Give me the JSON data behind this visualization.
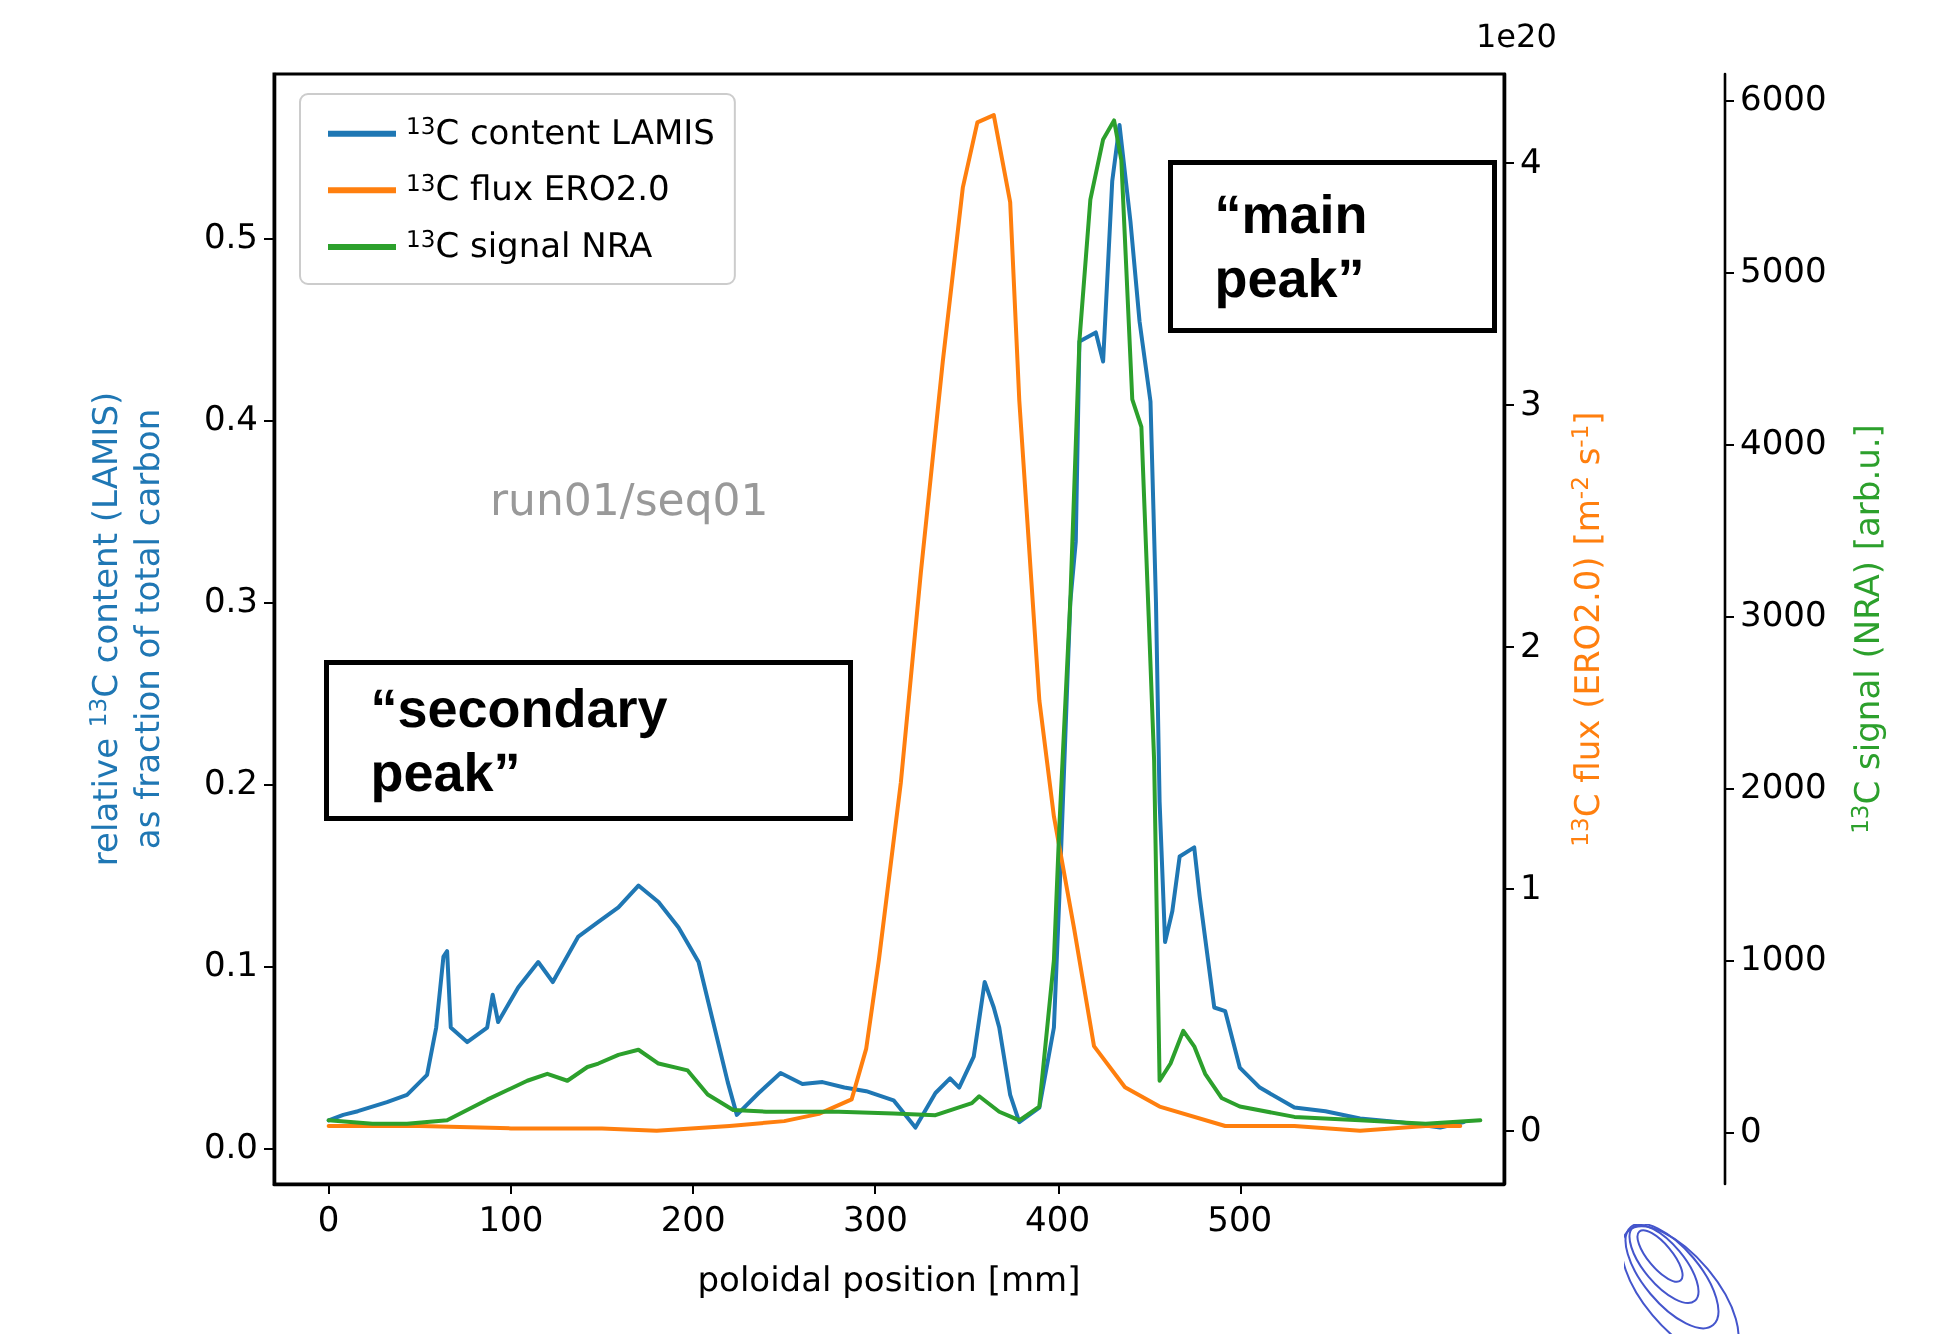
{
  "chart_data": {
    "type": "line",
    "xlabel": "poloidal position [mm]",
    "ylabel": "relative $^{13}$C content (LAMIS)\nas fraction of total carbon",
    "y2label": "$^{13}$C flux (ERO2.0) [m$^{-2}$ s$^{-1}$]",
    "y3label": "$^{13}$C signal (NRA) [arb.u.]",
    "annotations": [
      "run01/seq01",
      "“secondary peak”",
      "“main peak”",
      "1e20"
    ],
    "xlim": [
      -30,
      645
    ],
    "xticks": [
      0,
      100,
      200,
      300,
      400,
      500
    ],
    "ylim": [
      -0.02,
      0.59
    ],
    "yticks": [
      {
        "value": 0,
        "label": "0.0"
      },
      {
        "value": 0.1,
        "label": "0.1"
      },
      {
        "value": 0.2,
        "label": "0.2"
      },
      {
        "value": 0.3,
        "label": "0.3"
      },
      {
        "value": 0.4,
        "label": "0.4"
      },
      {
        "value": 0.5,
        "label": "0.5"
      }
    ],
    "y2lim": [
      -0.22,
      4.37
    ],
    "y2ticks": [
      0,
      1,
      2,
      3,
      4
    ],
    "y3lim": [
      -300,
      6150
    ],
    "y3ticks": [
      0,
      1000,
      2000,
      3000,
      4000,
      5000,
      6000
    ],
    "legend": "top left",
    "grid": false,
    "marker": "none",
    "line_style": "solid",
    "series": [
      {
        "name": "$^{13}$C content LAMIS",
        "color": "#1f77b4",
        "axis": "y",
        "x": [
          0,
          8,
          16,
          32,
          43,
          54,
          59,
          63,
          65,
          67,
          76,
          87,
          90,
          93,
          104,
          115,
          123,
          137,
          148,
          159,
          170,
          181,
          192,
          203,
          211,
          219,
          224,
          236,
          248,
          260,
          271,
          283,
          295,
          310,
          322,
          333,
          341,
          346,
          354,
          360,
          365,
          368,
          374,
          379,
          390,
          398,
          401,
          407,
          410,
          412,
          421,
          425,
          430,
          434,
          440,
          445,
          451,
          454,
          456,
          459,
          463,
          467,
          475,
          478,
          486,
          492,
          500,
          511,
          530,
          547,
          566,
          588,
          610,
          623
        ],
        "values": [
          0.015,
          0.018,
          0.02,
          0.025,
          0.029,
          0.04,
          0.066,
          0.105,
          0.108,
          0.066,
          0.058,
          0.066,
          0.084,
          0.069,
          0.088,
          0.102,
          0.091,
          0.116,
          0.124,
          0.132,
          0.144,
          0.135,
          0.121,
          0.102,
          0.069,
          0.036,
          0.018,
          0.03,
          0.041,
          0.035,
          0.036,
          0.033,
          0.031,
          0.026,
          0.011,
          0.03,
          0.038,
          0.033,
          0.05,
          0.091,
          0.077,
          0.066,
          0.029,
          0.014,
          0.022,
          0.066,
          0.138,
          0.3,
          0.333,
          0.443,
          0.448,
          0.432,
          0.531,
          0.562,
          0.509,
          0.454,
          0.41,
          0.3,
          0.19,
          0.113,
          0.13,
          0.16,
          0.165,
          0.138,
          0.077,
          0.075,
          0.044,
          0.033,
          0.022,
          0.02,
          0.016,
          0.014,
          0.011,
          0.014
        ]
      },
      {
        "name": "$^{13}$C flux ERO2.0",
        "color": "#ff7f0e",
        "axis": "y2",
        "x": [
          0,
          50,
          100,
          150,
          180,
          220,
          250,
          269,
          287,
          295,
          302,
          314,
          325,
          337,
          348,
          356,
          365,
          374,
          379,
          390,
          398,
          409,
          420,
          437,
          456,
          492,
          530,
          566,
          602,
          621
        ],
        "values": [
          0.02,
          0.02,
          0.01,
          0.01,
          0.0,
          0.02,
          0.04,
          0.07,
          0.13,
          0.34,
          0.71,
          1.44,
          2.31,
          3.18,
          3.9,
          4.17,
          4.2,
          3.84,
          3.02,
          1.78,
          1.3,
          0.84,
          0.35,
          0.18,
          0.1,
          0.02,
          0.02,
          0.0,
          0.02,
          0.02
        ]
      },
      {
        "name": "$^{13}$C signal NRA",
        "color": "#2ca02c",
        "axis": "y3",
        "x": [
          0,
          24,
          43,
          65,
          87,
          109,
          120,
          131,
          142,
          148,
          159,
          170,
          181,
          197,
          208,
          222,
          240,
          280,
          310,
          333,
          353,
          357,
          368,
          379,
          390,
          398,
          401,
          407,
          412,
          418,
          425,
          431,
          435,
          441,
          446,
          450,
          453,
          456,
          462,
          469,
          475,
          481,
          490,
          500,
          530,
          566,
          602,
          632
        ],
        "values": [
          70,
          50,
          50,
          70,
          190,
          300,
          340,
          300,
          380,
          400,
          450,
          480,
          400,
          360,
          220,
          130,
          120,
          120,
          110,
          100,
          170,
          210,
          120,
          70,
          150,
          1000,
          1780,
          3090,
          4600,
          5420,
          5770,
          5880,
          5650,
          4260,
          4100,
          3000,
          2160,
          300,
          400,
          590,
          500,
          340,
          200,
          150,
          90,
          70,
          50,
          70
        ]
      }
    ]
  }
}
